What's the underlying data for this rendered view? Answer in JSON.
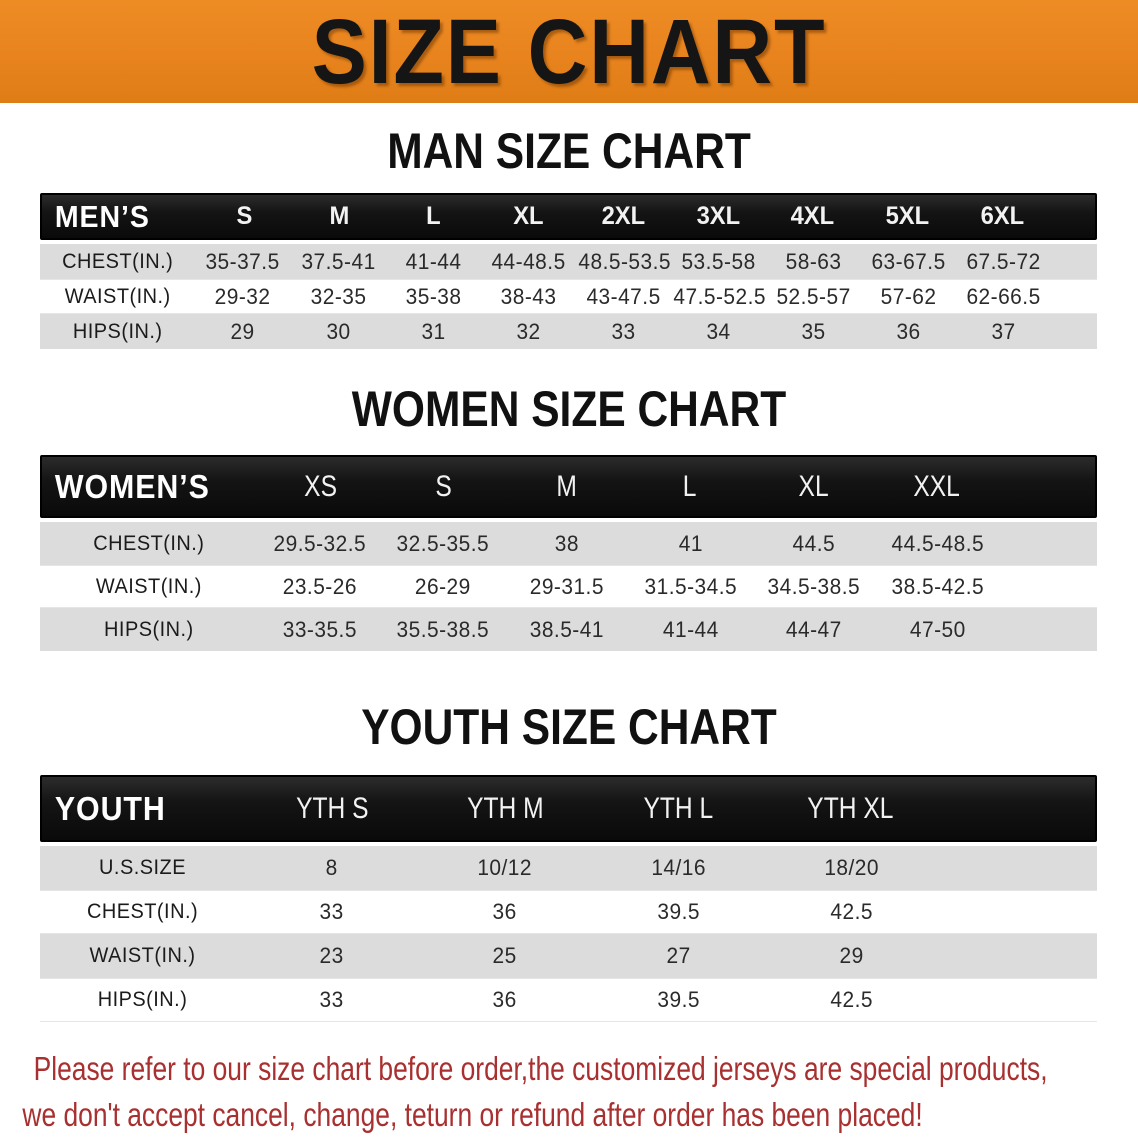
{
  "banner": {
    "title": "SIZE CHART"
  },
  "colors": {
    "orange": "#E8831E",
    "bar": "#141414",
    "grayrow": "#DCDCDC",
    "red": "#A93030",
    "ink": "#151515"
  },
  "sections": {
    "men": {
      "title": "MAN SIZE CHART",
      "table": {
        "label": "MEN’S",
        "sizes": [
          "S",
          "M",
          "L",
          "XL",
          "2XL",
          "3XL",
          "4XL",
          "5XL",
          "6XL"
        ],
        "rows": [
          {
            "label": "CHEST(IN.)",
            "values": [
              "35-37.5",
              "37.5-41",
              "41-44",
              "44-48.5",
              "48.5-53.5",
              "53.5-58",
              "58-63",
              "63-67.5",
              "67.5-72"
            ]
          },
          {
            "label": "WAIST(IN.)",
            "values": [
              "29-32",
              "32-35",
              "35-38",
              "38-43",
              "43-47.5",
              "47.5-52.5",
              "52.5-57",
              "57-62",
              "62-66.5"
            ]
          },
          {
            "label": "HIPS(IN.)",
            "values": [
              "29",
              "30",
              "31",
              "32",
              "33",
              "34",
              "35",
              "36",
              "37"
            ]
          }
        ]
      }
    },
    "women": {
      "title": "WOMEN SIZE CHART",
      "table": {
        "label": "WOMEN’S",
        "sizes": [
          "XS",
          "S",
          "M",
          "L",
          "XL",
          "XXL"
        ],
        "rows": [
          {
            "label": "CHEST(IN.)",
            "values": [
              "29.5-32.5",
              "32.5-35.5",
              "38",
              "41",
              "44.5",
              "44.5-48.5"
            ]
          },
          {
            "label": "WAIST(IN.)",
            "values": [
              "23.5-26",
              "26-29",
              "29-31.5",
              "31.5-34.5",
              "34.5-38.5",
              "38.5-42.5"
            ]
          },
          {
            "label": "HIPS(IN.)",
            "values": [
              "33-35.5",
              "35.5-38.5",
              "38.5-41",
              "41-44",
              "44-47",
              "47-50"
            ]
          }
        ]
      }
    },
    "youth": {
      "title": "YOUTH SIZE CHART",
      "table": {
        "label": "YOUTH",
        "sizes": [
          "YTH S",
          "YTH M",
          "YTH L",
          "YTH XL"
        ],
        "rows": [
          {
            "label": "U.S.SIZE",
            "values": [
              "8",
              "10/12",
              "14/16",
              "18/20"
            ]
          },
          {
            "label": "CHEST(IN.)",
            "values": [
              "33",
              "36",
              "39.5",
              "42.5"
            ]
          },
          {
            "label": "WAIST(IN.)",
            "values": [
              "23",
              "25",
              "27",
              "29"
            ]
          },
          {
            "label": "HIPS(IN.)",
            "values": [
              "33",
              "36",
              "39.5",
              "42.5"
            ]
          }
        ]
      }
    }
  },
  "disclaimer": {
    "line1": "Please refer to our size chart before order,the customized jerseys are special products,",
    "line2": "we don't accept cancel, change, teturn or refund after order has been placed!"
  }
}
